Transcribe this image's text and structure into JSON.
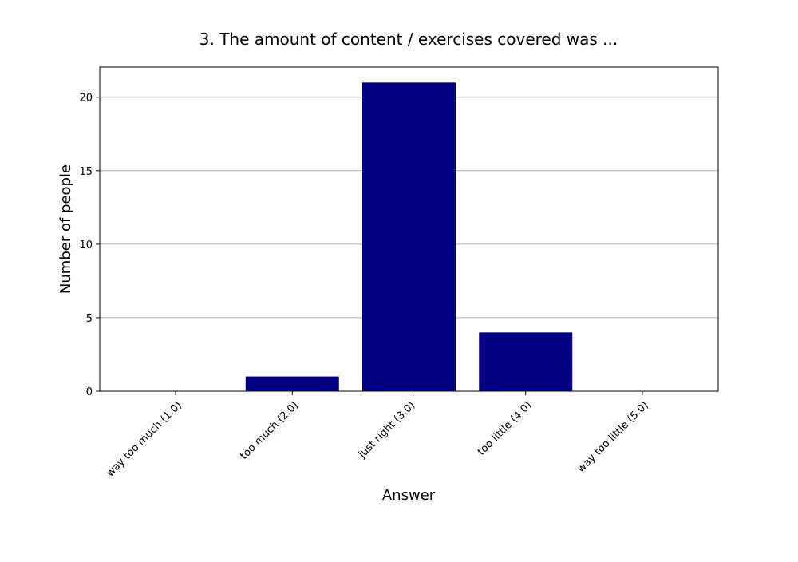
{
  "chart_data": {
    "type": "bar",
    "title": "3. The amount of content / exercises covered was ...",
    "xlabel": "Answer",
    "ylabel": "Number of people",
    "categories": [
      "way too much (1.0)",
      "too much (2.0)",
      "just right (3.0)",
      "too little (4.0)",
      "way too little (5.0)"
    ],
    "values": [
      0,
      1,
      21,
      4,
      0
    ],
    "ylim": [
      0,
      22.05
    ],
    "yticks": [
      0,
      5,
      10,
      15,
      20
    ],
    "grid": "horizontal",
    "bar_color": "#000080",
    "grid_color": "#b0b0b0"
  }
}
